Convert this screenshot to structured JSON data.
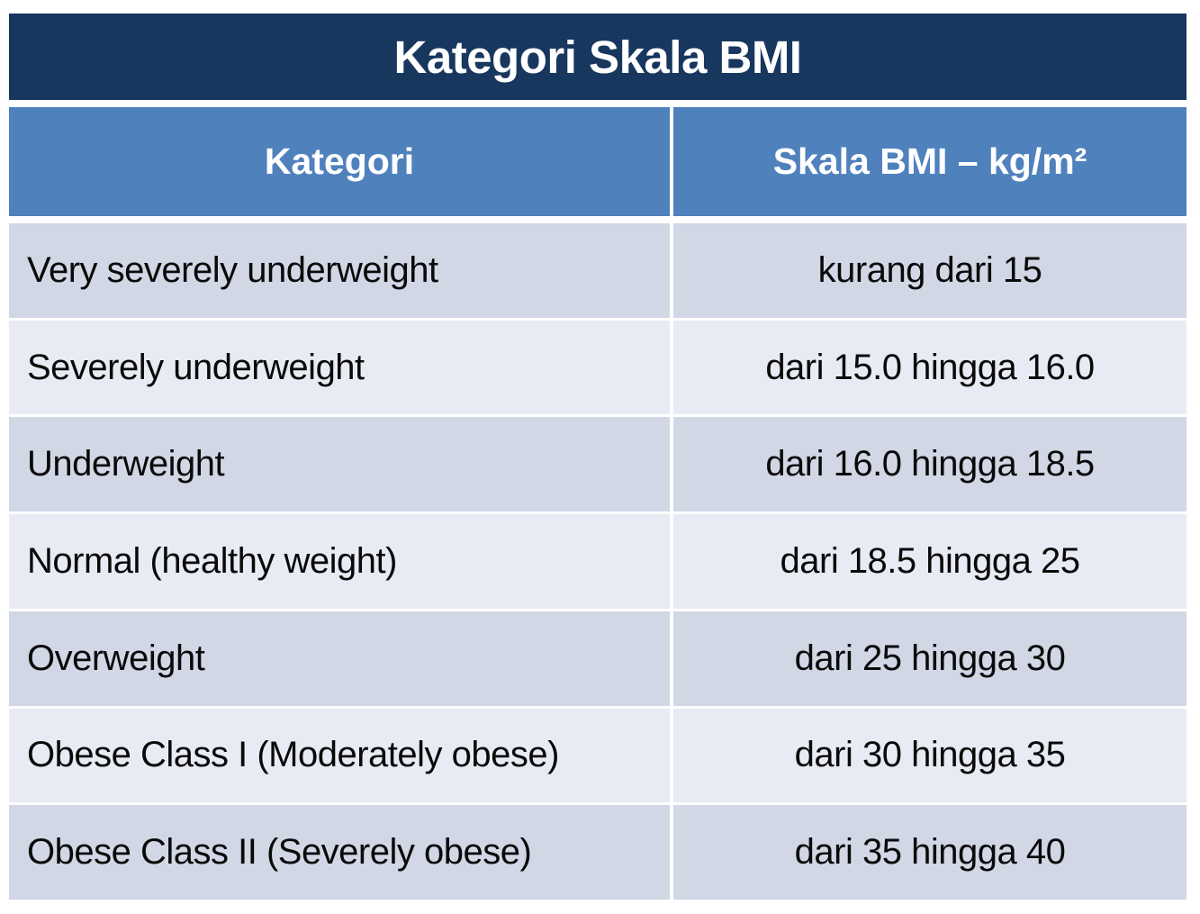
{
  "title": "Kategori Skala BMI",
  "table": {
    "columns": {
      "category": "Kategori",
      "scale": "Skala BMI – kg/m²"
    },
    "rows": [
      {
        "category": "Very severely underweight",
        "range": "kurang dari 15"
      },
      {
        "category": "Severely underweight",
        "range": "dari 15.0 hingga 16.0"
      },
      {
        "category": "Underweight",
        "range": "dari 16.0 hingga 18.5"
      },
      {
        "category": "Normal (healthy weight)",
        "range": "dari 18.5 hingga 25"
      },
      {
        "category": "Overweight",
        "range": "dari 25 hingga 30"
      },
      {
        "category": "Obese Class I (Moderately obese)",
        "range": "dari 30 hingga 35"
      },
      {
        "category": "Obese Class II (Severely obese)",
        "range": "dari 35 hingga 40"
      }
    ]
  },
  "colors": {
    "title_bg": "#18375e",
    "header_bg": "#4f81bd",
    "header_text": "#ffffff",
    "row_dark": "#d2d7e6",
    "row_light": "#e9ebf4",
    "text": "#0a0a0a"
  }
}
